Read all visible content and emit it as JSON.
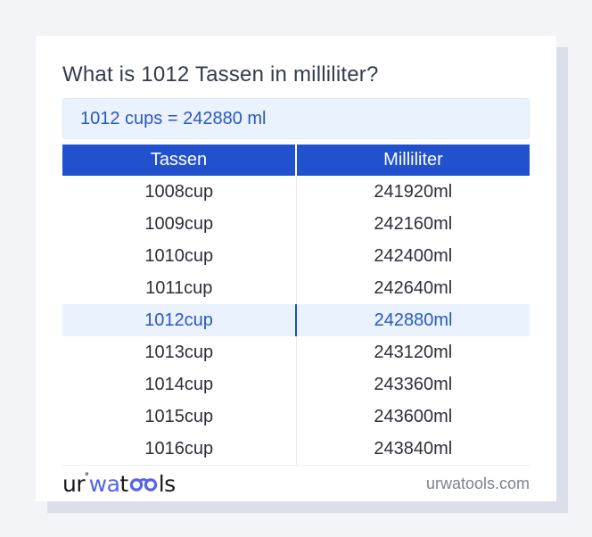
{
  "page": {
    "title": "What is 1012 Tassen in milliliter?",
    "answer": "1012 cups = 242880 ml"
  },
  "table": {
    "headers": [
      "Tassen",
      "Milliliter"
    ],
    "rows": [
      {
        "tassen": "1008cup",
        "milliliter": "241920ml",
        "highlighted": false
      },
      {
        "tassen": "1009cup",
        "milliliter": "242160ml",
        "highlighted": false
      },
      {
        "tassen": "1010cup",
        "milliliter": "242400ml",
        "highlighted": false
      },
      {
        "tassen": "1011cup",
        "milliliter": "242640ml",
        "highlighted": false
      },
      {
        "tassen": "1012cup",
        "milliliter": "242880ml",
        "highlighted": true
      },
      {
        "tassen": "1013cup",
        "milliliter": "243120ml",
        "highlighted": false
      },
      {
        "tassen": "1014cup",
        "milliliter": "243360ml",
        "highlighted": false
      },
      {
        "tassen": "1015cup",
        "milliliter": "243600ml",
        "highlighted": false
      },
      {
        "tassen": "1016cup",
        "milliliter": "243840ml",
        "highlighted": false
      }
    ]
  },
  "footer": {
    "logo": {
      "part_ur": "ur",
      "ring": "˚",
      "part_wa": "wa",
      "part_t": "t",
      "glasses_icon": "glasses-oo-icon",
      "part_ls": "ls"
    },
    "domain": "urwatools.com"
  },
  "colors": {
    "page_background": "#f2f4f8",
    "card_background": "#ffffff",
    "card_shadow": "#dbdfe9",
    "header_background": "#2151cc",
    "header_text": "#ffffff",
    "accent_blue_text": "#2a57c3",
    "highlight_row_background": "#e9f2fd",
    "highlight_divider": "#1d50d2",
    "answer_box_background": "#eaf3fd",
    "answer_box_border": "#dbe9f9",
    "row_text": "#2e2f38",
    "title_text": "#323c4d",
    "muted_text": "#7c8290",
    "logo_blue": "#5463ef",
    "logo_dark": "#17171d"
  }
}
